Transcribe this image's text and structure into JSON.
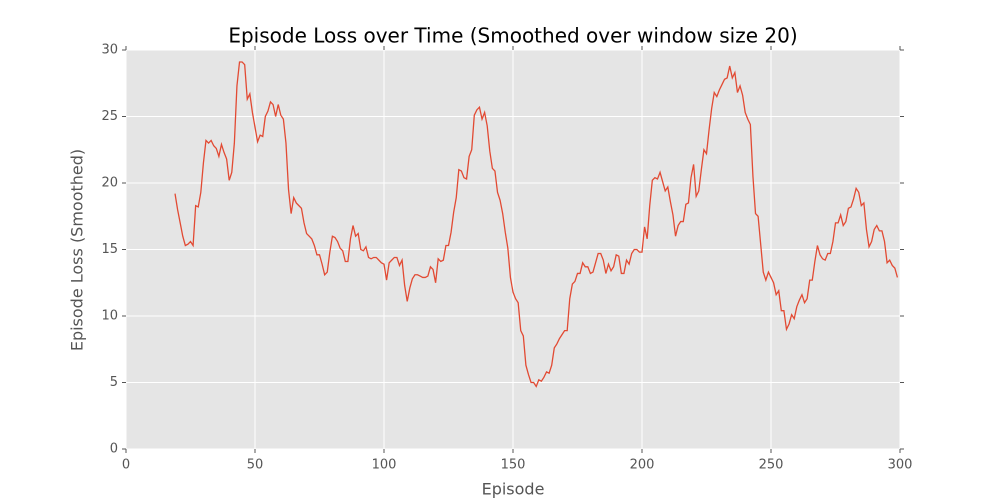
{
  "chart_data": {
    "type": "line",
    "title": "Episode Loss over Time (Smoothed over window size 20)",
    "x_label": "Episode",
    "y_label": "Episode Loss (Smoothed)",
    "xlim": [
      0,
      300
    ],
    "xticks": [
      0,
      50,
      100,
      150,
      200,
      250,
      300
    ],
    "ylim": [
      0,
      30
    ],
    "yticks": [
      0,
      5,
      10,
      15,
      20,
      25,
      30
    ],
    "grid": true,
    "x": [
      19,
      20,
      21,
      22,
      23,
      24,
      25,
      26,
      27,
      28,
      29,
      30,
      31,
      32,
      33,
      34,
      35,
      36,
      37,
      38,
      39,
      40,
      41,
      42,
      43,
      44,
      45,
      46,
      47,
      48,
      49,
      50,
      51,
      52,
      53,
      54,
      55,
      56,
      57,
      58,
      59,
      60,
      61,
      62,
      63,
      64,
      65,
      66,
      67,
      68,
      69,
      70,
      71,
      72,
      73,
      74,
      75,
      76,
      77,
      78,
      79,
      80,
      81,
      82,
      83,
      84,
      85,
      86,
      87,
      88,
      89,
      90,
      91,
      92,
      93,
      94,
      95,
      96,
      97,
      98,
      99,
      100,
      101,
      102,
      103,
      104,
      105,
      106,
      107,
      108,
      109,
      110,
      111,
      112,
      113,
      114,
      115,
      116,
      117,
      118,
      119,
      120,
      121,
      122,
      123,
      124,
      125,
      126,
      127,
      128,
      129,
      130,
      131,
      132,
      133,
      134,
      135,
      136,
      137,
      138,
      139,
      140,
      141,
      142,
      143,
      144,
      145,
      146,
      147,
      148,
      149,
      150,
      151,
      152,
      153,
      154,
      155,
      156,
      157,
      158,
      159,
      160,
      161,
      162,
      163,
      164,
      165,
      166,
      167,
      168,
      169,
      170,
      171,
      172,
      173,
      174,
      175,
      176,
      177,
      178,
      179,
      180,
      181,
      182,
      183,
      184,
      185,
      186,
      187,
      188,
      189,
      190,
      191,
      192,
      193,
      194,
      195,
      196,
      197,
      198,
      199,
      200,
      201,
      202,
      203,
      204,
      205,
      206,
      207,
      208,
      209,
      210,
      211,
      212,
      213,
      214,
      215,
      216,
      217,
      218,
      219,
      220,
      221,
      222,
      223,
      224,
      225,
      226,
      227,
      228,
      229,
      230,
      231,
      232,
      233,
      234,
      235,
      236,
      237,
      238,
      239,
      240,
      241,
      242,
      243,
      244,
      245,
      246,
      247,
      248,
      249,
      250,
      251,
      252,
      253,
      254,
      255,
      256,
      257,
      258,
      259,
      260,
      261,
      262,
      263,
      264,
      265,
      266,
      267,
      268,
      269,
      270,
      271,
      272,
      273,
      274,
      275,
      276,
      277,
      278,
      279,
      280,
      281,
      282,
      283,
      284,
      285,
      286,
      287,
      288,
      289,
      290,
      291,
      292,
      293,
      294,
      295,
      296,
      297,
      298,
      299
    ],
    "series": [
      {
        "color": "#e24a33",
        "values": [
          19.2,
          18,
          17,
          16,
          15.3,
          15.4,
          15.6,
          15.3,
          18.3,
          18.2,
          19.3,
          21.5,
          23.2,
          23.0,
          23.2,
          22.8,
          22.6,
          22.0,
          22.9,
          22.3,
          21.8,
          20.2,
          20.8,
          23,
          27.3,
          29.1,
          29.1,
          28.9,
          26.3,
          26.7,
          25.3,
          24.2,
          23.1,
          23.6,
          23.5,
          25.0,
          25.4,
          26.1,
          25.9,
          25.0,
          25.9,
          25.1,
          24.8,
          23,
          19.5,
          17.7,
          18.9,
          18.5,
          18.3,
          18.1,
          17,
          16.2,
          16.0,
          15.8,
          15.3,
          14.6,
          14.6,
          13.9,
          13.1,
          13.3,
          14.8,
          16.0,
          15.9,
          15.6,
          15.1,
          14.9,
          14.1,
          14.1,
          15.8,
          16.8,
          16.0,
          16.2,
          15.0,
          14.9,
          15.2,
          14.4,
          14.3,
          14.4,
          14.4,
          14.2,
          14.0,
          13.9,
          12.7,
          14.0,
          14.2,
          14.4,
          14.4,
          13.8,
          14.2,
          12.3,
          11.1,
          12.1,
          12.8,
          13.1,
          13.1,
          13.0,
          12.9,
          12.9,
          13.0,
          13.7,
          13.5,
          12.5,
          14.3,
          14.1,
          14.2,
          15.3,
          15.3,
          16.3,
          17.8,
          18.9,
          21.0,
          20.9,
          20.4,
          20.3,
          22.0,
          22.5,
          25.1,
          25.5,
          25.7,
          24.8,
          25.3,
          24.3,
          22.4,
          21.1,
          20.9,
          19.3,
          18.7,
          17.7,
          16.3,
          15.1,
          12.9,
          11.8,
          11.3,
          11.0,
          8.9,
          8.5,
          6.3,
          5.6,
          5.0,
          5.0,
          4.7,
          5.2,
          5.1,
          5.4,
          5.8,
          5.7,
          6.3,
          7.6,
          7.9,
          8.3,
          8.6,
          8.9,
          8.9,
          11.3,
          12.4,
          12.6,
          13.2,
          13.2,
          14.0,
          13.7,
          13.7,
          13.2,
          13.3,
          14.0,
          14.7,
          14.7,
          14.2,
          13.2,
          13.9,
          13.4,
          13.7,
          14.6,
          14.5,
          13.2,
          13.2,
          14.2,
          13.9,
          14.7,
          15.0,
          15.0,
          14.8,
          14.8,
          16.7,
          15.8,
          18.3,
          20.2,
          20.4,
          20.3,
          20.8,
          20.1,
          19.4,
          19.7,
          18.6,
          17.6,
          16.0,
          16.8,
          17.1,
          17.1,
          18.4,
          18.5,
          20.4,
          21.4,
          19.0,
          19.4,
          21.0,
          22.5,
          22.2,
          24.0,
          25.6,
          26.8,
          26.5,
          27.0,
          27.4,
          27.8,
          27.9,
          28.8,
          27.9,
          28.3,
          26.8,
          27.3,
          26.6,
          25.3,
          24.8,
          24.4,
          20.5,
          17.7,
          17.5,
          15.4,
          13.3,
          12.7,
          13.3,
          12.9,
          12.5,
          11.6,
          11.9,
          10.4,
          10.4,
          9.0,
          9.4,
          10.1,
          9.8,
          10.7,
          11.2,
          11.6,
          11.0,
          11.3,
          12.7,
          12.7,
          14.1,
          15.3,
          14.6,
          14.3,
          14.2,
          14.7,
          14.7,
          15.6,
          17.0,
          17.0,
          17.6,
          16.8,
          17.1,
          18.1,
          18.2,
          18.8,
          19.6,
          19.3,
          18.3,
          18.5,
          16.5,
          15.2,
          15.6,
          16.5,
          16.8,
          16.4,
          16.4,
          15.6,
          14.0,
          14.2,
          13.8,
          13.6,
          12.9
        ]
      }
    ]
  }
}
